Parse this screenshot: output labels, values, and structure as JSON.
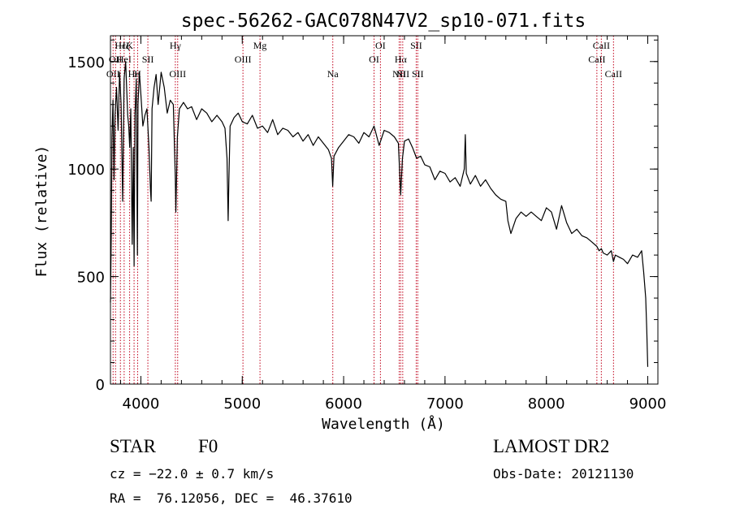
{
  "chart_data": {
    "type": "line",
    "title": "spec-56262-GAC078N47V2_sp10-071.fits",
    "xlabel": "Wavelength (Å)",
    "ylabel": "Flux (relative)",
    "xlim": [
      3700,
      9100
    ],
    "ylim": [
      0,
      1620
    ],
    "xticks": [
      4000,
      5000,
      6000,
      7000,
      8000,
      9000
    ],
    "yticks": [
      0,
      500,
      1000,
      1500
    ],
    "x_minor_step": 200,
    "y_minor_step": 100,
    "line_color": "#000000",
    "marker_color": "#c0001a",
    "series": [
      {
        "x": [
          3700,
          3708,
          3715,
          3725,
          3735,
          3745,
          3760,
          3775,
          3790,
          3805,
          3820,
          3835,
          3850,
          3862,
          3870,
          3880,
          3890,
          3900,
          3915,
          3925,
          3933,
          3942,
          3955,
          3966,
          3972,
          3985,
          4000,
          4020,
          4040,
          4060,
          4080,
          4095,
          4101,
          4110,
          4130,
          4150,
          4170,
          4200,
          4230,
          4260,
          4290,
          4320,
          4340,
          4345,
          4360,
          4380,
          4420,
          4460,
          4500,
          4550,
          4600,
          4650,
          4700,
          4750,
          4800,
          4830,
          4850,
          4861,
          4868,
          4880,
          4920,
          4960,
          5000,
          5050,
          5100,
          5150,
          5200,
          5250,
          5300,
          5350,
          5400,
          5450,
          5500,
          5550,
          5600,
          5650,
          5700,
          5750,
          5800,
          5850,
          5880,
          5892,
          5905,
          5950,
          6000,
          6050,
          6100,
          6150,
          6200,
          6250,
          6300,
          6350,
          6400,
          6450,
          6500,
          6540,
          6563,
          6580,
          6600,
          6640,
          6680,
          6720,
          6760,
          6800,
          6850,
          6900,
          6950,
          7000,
          7050,
          7100,
          7150,
          7190,
          7200,
          7210,
          7250,
          7300,
          7350,
          7400,
          7450,
          7500,
          7550,
          7600,
          7620,
          7650,
          7700,
          7750,
          7800,
          7850,
          7900,
          7950,
          8000,
          8050,
          8100,
          8150,
          8200,
          8250,
          8300,
          8350,
          8400,
          8450,
          8498,
          8520,
          8542,
          8560,
          8600,
          8640,
          8662,
          8680,
          8720,
          8760,
          8800,
          8850,
          8900,
          8940,
          8960,
          8980,
          8990,
          9000
        ],
        "y": [
          380,
          700,
          1150,
          1320,
          950,
          1250,
          1380,
          1180,
          1450,
          1300,
          850,
          1420,
          1500,
          1350,
          1250,
          1200,
          1100,
          1280,
          650,
          1100,
          550,
          1250,
          1420,
          600,
          1300,
          1450,
          1350,
          1200,
          1250,
          1280,
          1100,
          900,
          850,
          1280,
          1380,
          1440,
          1300,
          1450,
          1380,
          1260,
          1320,
          1300,
          950,
          800,
          1150,
          1280,
          1310,
          1280,
          1290,
          1230,
          1280,
          1260,
          1220,
          1250,
          1220,
          1190,
          1050,
          760,
          950,
          1200,
          1240,
          1260,
          1220,
          1210,
          1250,
          1190,
          1200,
          1170,
          1230,
          1160,
          1190,
          1180,
          1150,
          1170,
          1130,
          1160,
          1110,
          1150,
          1120,
          1090,
          1050,
          920,
          1060,
          1100,
          1130,
          1160,
          1150,
          1120,
          1170,
          1150,
          1200,
          1110,
          1180,
          1170,
          1150,
          1120,
          880,
          1050,
          1130,
          1140,
          1100,
          1050,
          1060,
          1020,
          1010,
          950,
          990,
          980,
          940,
          960,
          920,
          1000,
          1160,
          980,
          930,
          970,
          920,
          950,
          910,
          880,
          860,
          850,
          760,
          700,
          770,
          800,
          780,
          800,
          780,
          760,
          820,
          800,
          720,
          830,
          750,
          700,
          720,
          690,
          680,
          660,
          640,
          620,
          630,
          610,
          600,
          620,
          570,
          600,
          590,
          580,
          560,
          600,
          590,
          620,
          520,
          400,
          250,
          80
        ]
      }
    ],
    "line_markers": [
      {
        "x": 3726,
        "labels": [
          "OII"
        ],
        "row": 2
      },
      {
        "x": 3750,
        "labels": [
          "OII"
        ],
        "row": 1
      },
      {
        "x": 3798,
        "labels": [
          "Hε"
        ],
        "row": 0
      },
      {
        "x": 3835,
        "labels": [
          "Hζ",
          "HeI"
        ],
        "row": 0
      },
      {
        "x": 3889,
        "labels": [
          "K"
        ],
        "row": 0
      },
      {
        "x": 3933,
        "labels": [
          "Hη"
        ],
        "row": 2
      },
      {
        "x": 3968,
        "labels": [
          "H"
        ],
        "row": 2
      },
      {
        "x": 4069,
        "labels": [
          "SII"
        ],
        "row": 1
      },
      {
        "x": 4340,
        "labels": [
          "Hγ"
        ],
        "row": 0
      },
      {
        "x": 4363,
        "labels": [
          "OIII"
        ],
        "row": 2
      },
      {
        "x": 5007,
        "labels": [
          "OIII"
        ],
        "row": 1
      },
      {
        "x": 5175,
        "labels": [
          "Mg"
        ],
        "row": 0
      },
      {
        "x": 5893,
        "labels": [
          "Na"
        ],
        "row": 2
      },
      {
        "x": 6300,
        "labels": [
          "OI"
        ],
        "row": 1
      },
      {
        "x": 6363,
        "labels": [
          "OI"
        ],
        "row": 0
      },
      {
        "x": 6548,
        "labels": [
          "NII"
        ],
        "row": 2
      },
      {
        "x": 6563,
        "labels": [
          "Hα"
        ],
        "row": 1
      },
      {
        "x": 6583,
        "labels": [
          "NII"
        ],
        "row": 2
      },
      {
        "x": 6716,
        "labels": [
          "SII"
        ],
        "row": 0
      },
      {
        "x": 6731,
        "labels": [
          "SII"
        ],
        "row": 2
      },
      {
        "x": 8498,
        "labels": [
          "CaII"
        ],
        "row": 1
      },
      {
        "x": 8542,
        "labels": [
          "CaII"
        ],
        "row": 0
      },
      {
        "x": 8662,
        "labels": [
          "CaII"
        ],
        "row": 2
      }
    ]
  },
  "info": {
    "class_label": "STAR",
    "subclass_label": "F0",
    "cz_text": "cz = −22.0 ± 0.7 km/s",
    "coords_text": "RA =  76.12056, DEC =  46.37610",
    "survey_label": "LAMOST DR2",
    "obs_date_text": "Obs-Date: 20121130"
  }
}
